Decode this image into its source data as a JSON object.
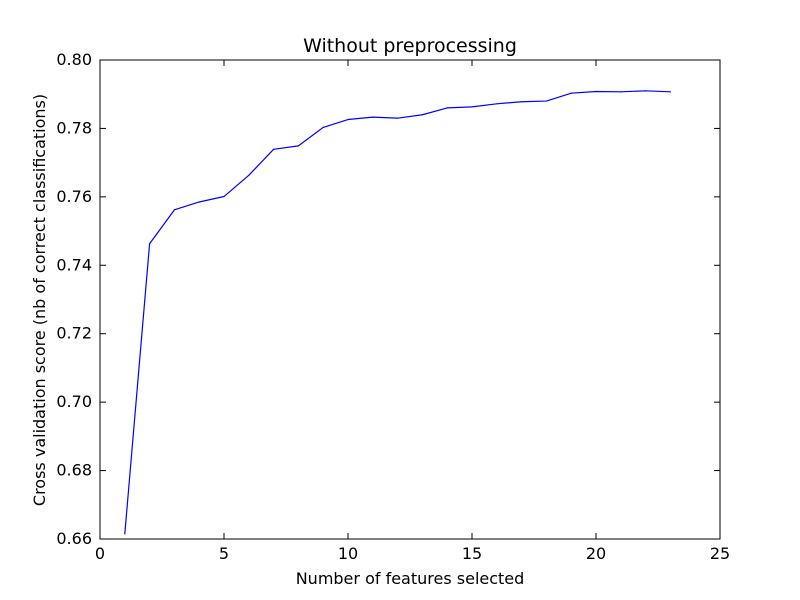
{
  "chart_data": {
    "type": "line",
    "title": "Without preprocessing",
    "xlabel": "Number of features selected",
    "ylabel": "Cross validation score (nb of correct classifications)",
    "xlim": [
      0,
      25
    ],
    "ylim": [
      0.66,
      0.8
    ],
    "xticks": [
      0,
      5,
      10,
      15,
      20,
      25
    ],
    "yticks": [
      0.66,
      0.68,
      0.7,
      0.72,
      0.74,
      0.76,
      0.78,
      0.8
    ],
    "xtick_labels": [
      "0",
      "5",
      "10",
      "15",
      "20",
      "25"
    ],
    "ytick_labels": [
      "0.66",
      "0.68",
      "0.70",
      "0.72",
      "0.74",
      "0.76",
      "0.78",
      "0.80"
    ],
    "grid": false,
    "series": [
      {
        "color": "#0000ff",
        "x": [
          1,
          2,
          3,
          4,
          5,
          6,
          7,
          8,
          9,
          10,
          11,
          12,
          13,
          14,
          15,
          16,
          17,
          18,
          19,
          20,
          21,
          22,
          23
        ],
        "y": [
          0.6615,
          0.7463,
          0.7562,
          0.7585,
          0.7601,
          0.7663,
          0.7739,
          0.7749,
          0.7803,
          0.7826,
          0.7833,
          0.783,
          0.784,
          0.786,
          0.7863,
          0.7872,
          0.7878,
          0.788,
          0.7903,
          0.7908,
          0.7907,
          0.791,
          0.7907
        ]
      }
    ]
  }
}
